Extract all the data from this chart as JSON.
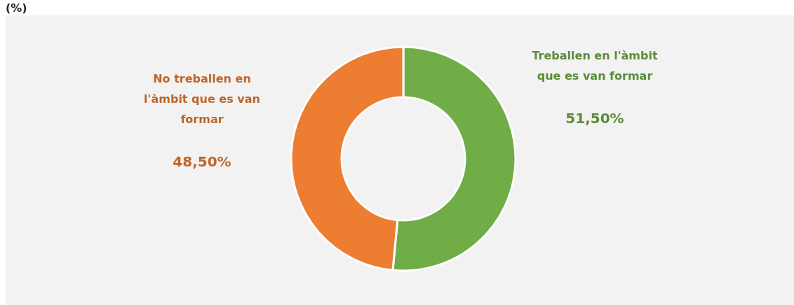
{
  "chart_data": {
    "type": "donut",
    "title": "(%)",
    "categories": [
      "Treballen en l'àmbit que es van formar",
      "No treballen en l'àmbit que es van formar"
    ],
    "values": [
      51.5,
      48.5
    ],
    "colors": [
      "#70ad47",
      "#ed7d31"
    ],
    "value_labels": [
      "51,50%",
      "48,50%"
    ]
  }
}
